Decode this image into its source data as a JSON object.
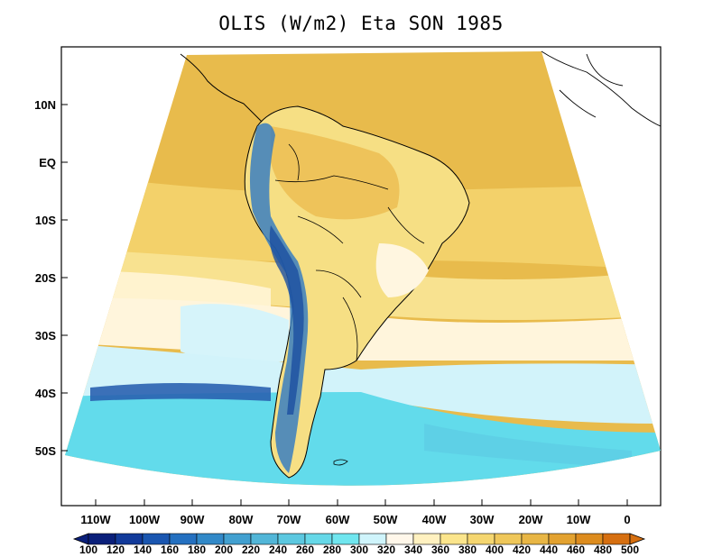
{
  "title": "OLIS (W/m2) Eta SON 1985",
  "axes": {
    "y_ticks": [
      "10N",
      "EQ",
      "10S",
      "20S",
      "30S",
      "40S",
      "50S"
    ],
    "x_ticks": [
      "110W",
      "100W",
      "90W",
      "80W",
      "70W",
      "60W",
      "50W",
      "40W",
      "30W",
      "20W",
      "10W",
      "0"
    ]
  },
  "colorbar": {
    "labels": [
      "100",
      "120",
      "140",
      "160",
      "180",
      "200",
      "220",
      "240",
      "260",
      "280",
      "300",
      "320",
      "340",
      "360",
      "380",
      "400",
      "420",
      "440",
      "460",
      "480",
      "500"
    ],
    "colors": [
      "#0a1f7a",
      "#123a9a",
      "#1a56b0",
      "#2470c0",
      "#3289c8",
      "#42a0d0",
      "#52b6d8",
      "#5cc8e0",
      "#66d8e8",
      "#70e6ef",
      "#cff4fb",
      "#fff7ea",
      "#fff1c0",
      "#fbe58c",
      "#f5d670",
      "#efc75a",
      "#e8b645",
      "#e3a230",
      "#dd8c1e",
      "#d66f10"
    ]
  },
  "map": {
    "region": "South America",
    "colors": {
      "land_outline": "#000000",
      "ocean_warm": "#e9bb4a",
      "ocean_mid": "#f6dc7a",
      "ocean_light": "#fff4d4",
      "ocean_cool": "#d2f4fa",
      "ocean_cold": "#62dceb",
      "andes_blue": "#3a7fc0"
    }
  }
}
